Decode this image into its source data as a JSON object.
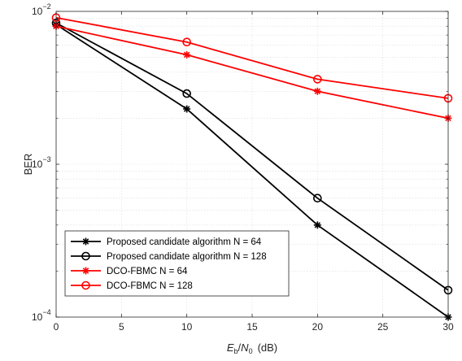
{
  "chart_data": {
    "type": "line",
    "title": "",
    "xlabel": "(dB)",
    "xlabel_math": {
      "E": "E",
      "b": "b",
      "slash": "/",
      "N": "N",
      "zero": "0"
    },
    "ylabel": "BER",
    "x": [
      0,
      10,
      20,
      30
    ],
    "xlim": [
      0,
      30
    ],
    "ylim": [
      0.0001,
      0.01
    ],
    "yscale": "log",
    "xticks": [
      "0",
      "5",
      "10",
      "15",
      "20",
      "25",
      "30"
    ],
    "yticks": [
      {
        "base": "10",
        "exp": "−2"
      },
      {
        "base": "10",
        "exp": "−3"
      },
      {
        "base": "10",
        "exp": "−4"
      }
    ],
    "grid": true,
    "legend_position": "bottom-left",
    "series": [
      {
        "name": "Proposed candidate algorithm N = 64",
        "color": "#000000",
        "marker": "asterisk",
        "values": [
          0.0082,
          0.0023,
          0.0004,
          0.0001
        ]
      },
      {
        "name": "Proposed candidate algorithm N = 128",
        "color": "#000000",
        "marker": "circle",
        "values": [
          0.0084,
          0.0029,
          0.0006,
          0.00015
        ]
      },
      {
        "name": "DCO-FBMC N = 64",
        "color": "#ff0000",
        "marker": "asterisk",
        "values": [
          0.008,
          0.0052,
          0.003,
          0.002
        ]
      },
      {
        "name": "DCO-FBMC N = 128",
        "color": "#ff0000",
        "marker": "circle",
        "values": [
          0.0091,
          0.0063,
          0.0036,
          0.0027
        ]
      }
    ]
  }
}
